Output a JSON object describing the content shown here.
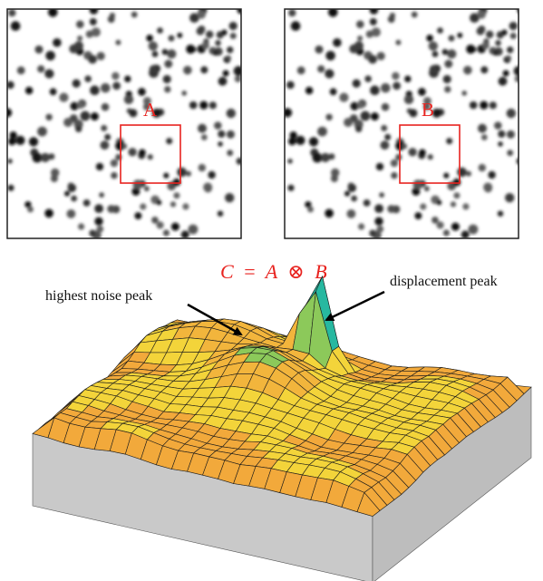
{
  "images": {
    "left": {
      "window_label": "A"
    },
    "right": {
      "window_label": "B"
    }
  },
  "equation": {
    "lhs": "C",
    "equals": "=",
    "operand_a": "A",
    "operator": "⊗",
    "operand_b": "B",
    "color": "#e8231f"
  },
  "annotations": {
    "noise_peak": "highest noise peak",
    "displacement_peak": "displacement peak"
  },
  "colors": {
    "window_outline": "#e8231f",
    "surface_low": "#f2a93b",
    "surface_mid": "#f5e23a",
    "surface_high": "#27b8a0",
    "surface_peak": "#2f6fe0",
    "base_side": "#c9c9c9"
  }
}
